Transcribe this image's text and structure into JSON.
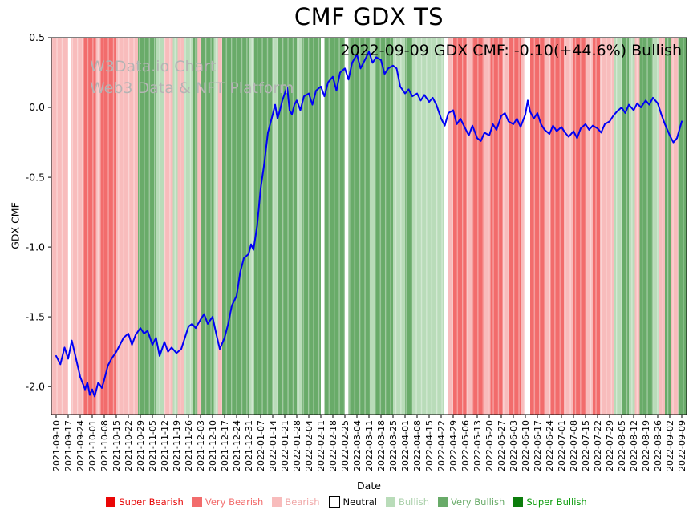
{
  "header": {
    "title": "CMF GDX TS",
    "annotation": "2022-09-09 GDX CMF: -0.10(+44.6%) Bullish"
  },
  "watermark": {
    "line1": "W3Data.io Chart",
    "line2": "Web3 Data & NFT Platform"
  },
  "chart_data": {
    "type": "line",
    "title": "CMF GDX TS",
    "xlabel": "Date",
    "ylabel": "GDX CMF",
    "ylim": [
      -2.2,
      0.5
    ],
    "yticks": [
      0.5,
      0.0,
      -0.5,
      -1.0,
      -1.5,
      -2.0
    ],
    "grid": false,
    "line_color": "#0000f5",
    "x": [
      "2021-09-10",
      "2021-09-17",
      "2021-09-24",
      "2021-10-01",
      "2021-10-08",
      "2021-10-15",
      "2021-10-22",
      "2021-10-29",
      "2021-11-05",
      "2021-11-12",
      "2021-11-19",
      "2021-11-26",
      "2021-12-03",
      "2021-12-10",
      "2021-12-17",
      "2021-12-24",
      "2021-12-31",
      "2022-01-07",
      "2022-01-14",
      "2022-01-21",
      "2022-01-28",
      "2022-02-04",
      "2022-02-11",
      "2022-02-18",
      "2022-02-25",
      "2022-03-04",
      "2022-03-11",
      "2022-03-18",
      "2022-03-25",
      "2022-04-01",
      "2022-04-08",
      "2022-04-15",
      "2022-04-22",
      "2022-04-29",
      "2022-05-06",
      "2022-05-13",
      "2022-05-20",
      "2022-05-27",
      "2022-06-03",
      "2022-06-10",
      "2022-06-17",
      "2022-06-24",
      "2022-07-01",
      "2022-07-08",
      "2022-07-15",
      "2022-07-22",
      "2022-07-29",
      "2022-08-05",
      "2022-08-12",
      "2022-08-19",
      "2022-08-26",
      "2022-09-02",
      "2022-09-09"
    ],
    "points": [
      [
        0,
        -1.78
      ],
      [
        0.35,
        -1.84
      ],
      [
        0.7,
        -1.72
      ],
      [
        1,
        -1.8
      ],
      [
        1.3,
        -1.67
      ],
      [
        1.6,
        -1.78
      ],
      [
        2,
        -1.93
      ],
      [
        2.4,
        -2.02
      ],
      [
        2.6,
        -1.97
      ],
      [
        2.8,
        -2.06
      ],
      [
        3,
        -2.02
      ],
      [
        3.2,
        -2.07
      ],
      [
        3.5,
        -1.97
      ],
      [
        3.8,
        -2.01
      ],
      [
        4,
        -1.95
      ],
      [
        4.3,
        -1.85
      ],
      [
        4.6,
        -1.8
      ],
      [
        5,
        -1.75
      ],
      [
        5.3,
        -1.7
      ],
      [
        5.6,
        -1.65
      ],
      [
        6,
        -1.62
      ],
      [
        6.3,
        -1.7
      ],
      [
        6.6,
        -1.63
      ],
      [
        7,
        -1.58
      ],
      [
        7.3,
        -1.62
      ],
      [
        7.6,
        -1.6
      ],
      [
        8,
        -1.7
      ],
      [
        8.3,
        -1.65
      ],
      [
        8.6,
        -1.78
      ],
      [
        9,
        -1.68
      ],
      [
        9.3,
        -1.75
      ],
      [
        9.6,
        -1.72
      ],
      [
        10,
        -1.76
      ],
      [
        10.4,
        -1.73
      ],
      [
        10.7,
        -1.65
      ],
      [
        11,
        -1.57
      ],
      [
        11.3,
        -1.55
      ],
      [
        11.6,
        -1.58
      ],
      [
        12,
        -1.52
      ],
      [
        12.3,
        -1.48
      ],
      [
        12.6,
        -1.55
      ],
      [
        13,
        -1.5
      ],
      [
        13.3,
        -1.62
      ],
      [
        13.6,
        -1.73
      ],
      [
        14,
        -1.65
      ],
      [
        14.3,
        -1.55
      ],
      [
        14.6,
        -1.42
      ],
      [
        15,
        -1.35
      ],
      [
        15.3,
        -1.18
      ],
      [
        15.6,
        -1.08
      ],
      [
        16,
        -1.05
      ],
      [
        16.2,
        -0.98
      ],
      [
        16.4,
        -1.02
      ],
      [
        16.7,
        -0.85
      ],
      [
        17,
        -0.58
      ],
      [
        17.3,
        -0.4
      ],
      [
        17.6,
        -0.18
      ],
      [
        18,
        -0.05
      ],
      [
        18.2,
        0.02
      ],
      [
        18.4,
        -0.08
      ],
      [
        18.6,
        -0.02
      ],
      [
        18.8,
        0.05
      ],
      [
        19,
        0.1
      ],
      [
        19.2,
        0.15
      ],
      [
        19.4,
        -0.02
      ],
      [
        19.6,
        -0.05
      ],
      [
        19.8,
        0.02
      ],
      [
        20,
        0.05
      ],
      [
        20.3,
        -0.02
      ],
      [
        20.6,
        0.08
      ],
      [
        21,
        0.1
      ],
      [
        21.3,
        0.02
      ],
      [
        21.6,
        0.12
      ],
      [
        22,
        0.15
      ],
      [
        22.3,
        0.08
      ],
      [
        22.6,
        0.18
      ],
      [
        23,
        0.22
      ],
      [
        23.3,
        0.12
      ],
      [
        23.6,
        0.25
      ],
      [
        24,
        0.28
      ],
      [
        24.3,
        0.2
      ],
      [
        24.6,
        0.32
      ],
      [
        25,
        0.38
      ],
      [
        25.3,
        0.28
      ],
      [
        25.6,
        0.33
      ],
      [
        26,
        0.4
      ],
      [
        26.3,
        0.32
      ],
      [
        26.6,
        0.36
      ],
      [
        27,
        0.34
      ],
      [
        27.3,
        0.24
      ],
      [
        27.6,
        0.28
      ],
      [
        28,
        0.3
      ],
      [
        28.3,
        0.28
      ],
      [
        28.6,
        0.15
      ],
      [
        29,
        0.1
      ],
      [
        29.3,
        0.13
      ],
      [
        29.6,
        0.08
      ],
      [
        30,
        0.1
      ],
      [
        30.3,
        0.05
      ],
      [
        30.6,
        0.09
      ],
      [
        31,
        0.04
      ],
      [
        31.3,
        0.07
      ],
      [
        31.6,
        0.02
      ],
      [
        32,
        -0.08
      ],
      [
        32.3,
        -0.13
      ],
      [
        32.6,
        -0.04
      ],
      [
        33,
        -0.02
      ],
      [
        33.3,
        -0.12
      ],
      [
        33.6,
        -0.08
      ],
      [
        34,
        -0.15
      ],
      [
        34.3,
        -0.2
      ],
      [
        34.6,
        -0.13
      ],
      [
        35,
        -0.22
      ],
      [
        35.3,
        -0.24
      ],
      [
        35.6,
        -0.18
      ],
      [
        36,
        -0.2
      ],
      [
        36.3,
        -0.12
      ],
      [
        36.6,
        -0.16
      ],
      [
        37,
        -0.06
      ],
      [
        37.3,
        -0.04
      ],
      [
        37.6,
        -0.1
      ],
      [
        38,
        -0.12
      ],
      [
        38.3,
        -0.08
      ],
      [
        38.6,
        -0.14
      ],
      [
        39,
        -0.05
      ],
      [
        39.2,
        0.05
      ],
      [
        39.4,
        -0.03
      ],
      [
        39.7,
        -0.08
      ],
      [
        40,
        -0.04
      ],
      [
        40.3,
        -0.12
      ],
      [
        40.6,
        -0.16
      ],
      [
        41,
        -0.19
      ],
      [
        41.3,
        -0.13
      ],
      [
        41.6,
        -0.17
      ],
      [
        42,
        -0.14
      ],
      [
        42.3,
        -0.18
      ],
      [
        42.6,
        -0.21
      ],
      [
        43,
        -0.17
      ],
      [
        43.3,
        -0.22
      ],
      [
        43.6,
        -0.15
      ],
      [
        44,
        -0.12
      ],
      [
        44.3,
        -0.16
      ],
      [
        44.6,
        -0.13
      ],
      [
        45,
        -0.15
      ],
      [
        45.3,
        -0.18
      ],
      [
        45.6,
        -0.12
      ],
      [
        46,
        -0.1
      ],
      [
        46.3,
        -0.06
      ],
      [
        46.6,
        -0.03
      ],
      [
        47,
        0
      ],
      [
        47.3,
        -0.04
      ],
      [
        47.6,
        0.02
      ],
      [
        48,
        -0.02
      ],
      [
        48.3,
        0.03
      ],
      [
        48.6,
        0
      ],
      [
        49,
        0.05
      ],
      [
        49.3,
        0.02
      ],
      [
        49.6,
        0.07
      ],
      [
        50,
        0.03
      ],
      [
        50.3,
        -0.05
      ],
      [
        50.6,
        -0.12
      ],
      [
        51,
        -0.2
      ],
      [
        51.3,
        -0.25
      ],
      [
        51.6,
        -0.22
      ],
      [
        52,
        -0.1
      ]
    ],
    "band_colors": {
      "super_bearish": "#ea0606",
      "very_bearish": "#f26c6c",
      "bearish": "#f8bcbc",
      "neutral": "#ffffff",
      "bullish": "#b9dcb9",
      "very_bullish": "#69ab69",
      "super_bullish": "#0c7d0c"
    },
    "bands": [
      {
        "start": 0,
        "end": 1.0,
        "category": "bearish"
      },
      {
        "start": 1.0,
        "end": 1.25,
        "category": "neutral"
      },
      {
        "start": 1.25,
        "end": 2.3,
        "category": "bearish"
      },
      {
        "start": 2.3,
        "end": 3.3,
        "category": "very_bearish"
      },
      {
        "start": 3.3,
        "end": 3.7,
        "category": "bearish"
      },
      {
        "start": 3.7,
        "end": 5.0,
        "category": "very_bearish"
      },
      {
        "start": 5.0,
        "end": 6.8,
        "category": "bearish"
      },
      {
        "start": 6.8,
        "end": 8.3,
        "category": "very_bullish"
      },
      {
        "start": 8.3,
        "end": 9.0,
        "category": "bullish"
      },
      {
        "start": 9.0,
        "end": 9.7,
        "category": "bearish"
      },
      {
        "start": 9.7,
        "end": 10.1,
        "category": "bullish"
      },
      {
        "start": 10.1,
        "end": 10.6,
        "category": "bearish"
      },
      {
        "start": 10.6,
        "end": 11.4,
        "category": "bullish"
      },
      {
        "start": 11.4,
        "end": 11.75,
        "category": "very_bullish"
      },
      {
        "start": 11.75,
        "end": 12.0,
        "category": "bearish"
      },
      {
        "start": 12.0,
        "end": 13.1,
        "category": "very_bullish"
      },
      {
        "start": 13.1,
        "end": 13.45,
        "category": "bullish"
      },
      {
        "start": 13.45,
        "end": 13.8,
        "category": "bearish"
      },
      {
        "start": 13.8,
        "end": 16.0,
        "category": "very_bullish"
      },
      {
        "start": 16.0,
        "end": 16.45,
        "category": "bullish"
      },
      {
        "start": 16.45,
        "end": 18.0,
        "category": "very_bullish"
      },
      {
        "start": 18.0,
        "end": 18.4,
        "category": "bullish"
      },
      {
        "start": 18.4,
        "end": 20.0,
        "category": "very_bullish"
      },
      {
        "start": 20.0,
        "end": 20.4,
        "category": "bullish"
      },
      {
        "start": 20.4,
        "end": 22.0,
        "category": "very_bullish"
      },
      {
        "start": 22.0,
        "end": 22.3,
        "category": "neutral"
      },
      {
        "start": 22.3,
        "end": 24.0,
        "category": "very_bullish"
      },
      {
        "start": 24.0,
        "end": 24.3,
        "category": "neutral"
      },
      {
        "start": 24.3,
        "end": 26.1,
        "category": "very_bullish"
      },
      {
        "start": 26.1,
        "end": 26.5,
        "category": "bullish"
      },
      {
        "start": 26.5,
        "end": 28.0,
        "category": "very_bullish"
      },
      {
        "start": 28.0,
        "end": 29.0,
        "category": "bullish"
      },
      {
        "start": 29.0,
        "end": 29.6,
        "category": "very_bullish"
      },
      {
        "start": 29.6,
        "end": 32.2,
        "category": "bullish"
      },
      {
        "start": 32.2,
        "end": 32.6,
        "category": "neutral"
      },
      {
        "start": 32.6,
        "end": 33.0,
        "category": "bearish"
      },
      {
        "start": 33.0,
        "end": 34.1,
        "category": "very_bearish"
      },
      {
        "start": 34.1,
        "end": 34.6,
        "category": "bearish"
      },
      {
        "start": 34.6,
        "end": 35.6,
        "category": "very_bearish"
      },
      {
        "start": 35.6,
        "end": 36.1,
        "category": "bearish"
      },
      {
        "start": 36.1,
        "end": 37.1,
        "category": "very_bearish"
      },
      {
        "start": 37.1,
        "end": 37.6,
        "category": "bearish"
      },
      {
        "start": 37.6,
        "end": 38.6,
        "category": "very_bearish"
      },
      {
        "start": 38.6,
        "end": 39.0,
        "category": "bearish"
      },
      {
        "start": 39.0,
        "end": 39.4,
        "category": "neutral"
      },
      {
        "start": 39.4,
        "end": 40.6,
        "category": "very_bearish"
      },
      {
        "start": 40.6,
        "end": 41.1,
        "category": "bearish"
      },
      {
        "start": 41.1,
        "end": 42.2,
        "category": "very_bearish"
      },
      {
        "start": 42.2,
        "end": 43.0,
        "category": "bearish"
      },
      {
        "start": 43.0,
        "end": 44.0,
        "category": "very_bearish"
      },
      {
        "start": 44.0,
        "end": 44.6,
        "category": "bearish"
      },
      {
        "start": 44.6,
        "end": 45.2,
        "category": "very_bearish"
      },
      {
        "start": 45.2,
        "end": 46.4,
        "category": "bearish"
      },
      {
        "start": 46.4,
        "end": 47.0,
        "category": "bullish"
      },
      {
        "start": 47.0,
        "end": 47.6,
        "category": "very_bullish"
      },
      {
        "start": 47.6,
        "end": 48.1,
        "category": "bullish"
      },
      {
        "start": 48.1,
        "end": 48.5,
        "category": "bearish"
      },
      {
        "start": 48.5,
        "end": 49.6,
        "category": "very_bullish"
      },
      {
        "start": 49.6,
        "end": 50.1,
        "category": "bullish"
      },
      {
        "start": 50.1,
        "end": 50.6,
        "category": "bearish"
      },
      {
        "start": 50.6,
        "end": 51.1,
        "category": "very_bullish"
      },
      {
        "start": 51.1,
        "end": 51.7,
        "category": "bearish"
      },
      {
        "start": 51.7,
        "end": 52.0,
        "category": "very_bullish"
      }
    ]
  },
  "legend": [
    {
      "label": "Super Bearish",
      "color": "#ea0606",
      "text_color": "#e60606"
    },
    {
      "label": "Very Bearish",
      "color": "#f26c6c",
      "text_color": "#f26c6c"
    },
    {
      "label": "Bearish",
      "color": "#f8bcbc",
      "text_color": "#f0a8a8"
    },
    {
      "label": "Neutral",
      "color": "#ffffff",
      "text_color": "#000000"
    },
    {
      "label": "Bullish",
      "color": "#b9dcb9",
      "text_color": "#a8cfa8"
    },
    {
      "label": "Very Bullish",
      "color": "#69ab69",
      "text_color": "#69ab69"
    },
    {
      "label": "Super Bullish",
      "color": "#0c7d0c",
      "text_color": "#0a9b0a"
    }
  ]
}
